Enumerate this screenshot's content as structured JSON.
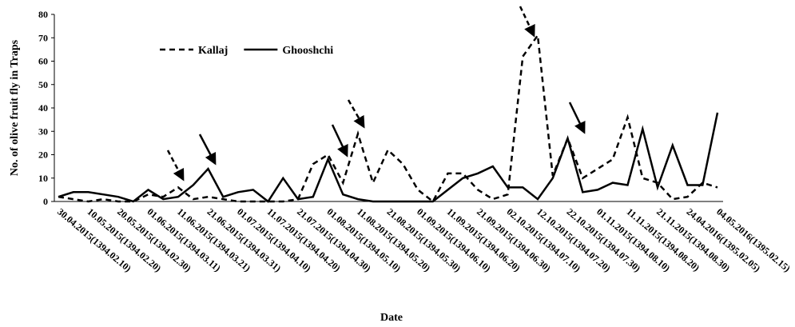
{
  "chart_data": {
    "type": "line",
    "x_label": "Date",
    "y_label": "No. of olive fruit fly  in Traps",
    "categories": [
      "30.04.2015(1394.02.10)",
      null,
      "10.05.2015(1394.02.20)",
      null,
      "20.05.2015(1394.02.30)",
      null,
      "01.06.2015(1394.03.11)",
      null,
      "11.06.2015(1394.03.21)",
      null,
      "21.06.2015(1394.03.31)",
      null,
      "01.07.2015(1394.04.10)",
      null,
      "11.07.2015(1394.04.20)",
      null,
      "21.07.2015(1394.04.30)",
      null,
      "01.08.2015(1394.05.10)",
      null,
      "11.08.2015(1394.05.20)",
      null,
      "21.08.2015(1394.05.30)",
      null,
      "01.09.2015(1394.06.10)",
      null,
      "11.09.2015(1394.06.20)",
      null,
      "21.09.2015(1394.06.30)",
      null,
      "02.10.2015(1394.07.10)",
      null,
      "12.10.2015(1394.07.20)",
      null,
      "22.10.2015(1394.07.30)",
      null,
      "01.11.2015(1394.08.10)",
      null,
      "11.11.2015(1394.08.20)",
      null,
      "21.11.2015(1394.08.30)",
      null,
      "24.04.2016(1395.02.05)",
      null,
      "04.05.2016(1395.02.15)"
    ],
    "series": [
      {
        "name": "Kallaj",
        "color": "#000000",
        "style": "dashed",
        "values": [
          2,
          1,
          0,
          1,
          0,
          0,
          3,
          2,
          6,
          1,
          2,
          1,
          0,
          0,
          0,
          0,
          1,
          16,
          20,
          8,
          29,
          8,
          22,
          16,
          5,
          0,
          12,
          12,
          5,
          1,
          3,
          62,
          71,
          11,
          27,
          10,
          14,
          18,
          36,
          10,
          8,
          1,
          2,
          8,
          6
        ]
      },
      {
        "name": "Ghooshchi",
        "color": "#000000",
        "style": "solid",
        "values": [
          2,
          4,
          4,
          3,
          2,
          0,
          5,
          1,
          2,
          7,
          14,
          2,
          4,
          5,
          0,
          10,
          1,
          2,
          18,
          3,
          1,
          0,
          0,
          0,
          0,
          0,
          5,
          10,
          12,
          15,
          6,
          6,
          1,
          10,
          27,
          4,
          5,
          8,
          7,
          31,
          6,
          24,
          7,
          7,
          38
        ]
      }
    ],
    "ylim": [
      0,
      80
    ],
    "yticks": [
      0,
      10,
      20,
      30,
      40,
      50,
      60,
      70,
      80
    ],
    "grid": false,
    "legend": "upper left"
  }
}
